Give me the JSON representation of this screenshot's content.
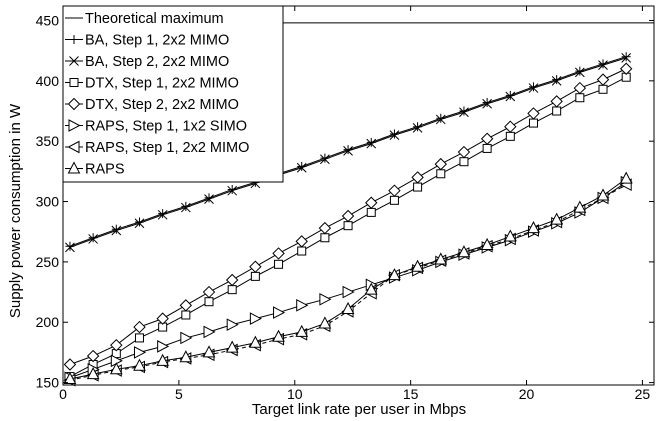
{
  "chart_data": {
    "type": "line",
    "title": "",
    "xlabel": "Target link rate per user in Mbps",
    "ylabel": "Supply power consumption in W",
    "xlim": [
      0,
      25.5
    ],
    "ylim": [
      148,
      462
    ],
    "xticks": [
      0,
      5,
      10,
      15,
      20,
      25
    ],
    "yticks": [
      150,
      200,
      250,
      300,
      350,
      400,
      450
    ],
    "grid": false,
    "legend_position": "top-left",
    "theoretical_maximum": {
      "name": "Theoretical maximum",
      "value": 448
    },
    "x": [
      0.3,
      1.3,
      2.3,
      3.3,
      4.3,
      5.3,
      6.3,
      7.3,
      8.3,
      9.3,
      10.3,
      11.3,
      12.3,
      13.3,
      14.3,
      15.3,
      16.3,
      17.3,
      18.3,
      19.3,
      20.3,
      21.3,
      22.3,
      23.3,
      24.3
    ],
    "series": [
      {
        "name": "BA, Step 1, 2x2 MIMO",
        "marker": "plus",
        "values": [
          263,
          270,
          277,
          283,
          290,
          296,
          303,
          310,
          316,
          323,
          329,
          336,
          343,
          349,
          356,
          362,
          369,
          375,
          382,
          388,
          395,
          401,
          408,
          414,
          420
        ]
      },
      {
        "name": "BA, Step 2, 2x2 MIMO",
        "marker": "x",
        "values": [
          262,
          269,
          276,
          282,
          289,
          295,
          302,
          309,
          315,
          322,
          328,
          335,
          342,
          348,
          355,
          361,
          368,
          374,
          381,
          387,
          394,
          400,
          407,
          413,
          419
        ]
      },
      {
        "name": "DTX, Step 1, 2x2 MIMO",
        "marker": "square",
        "values": [
          155,
          165,
          174,
          187,
          196,
          206,
          217,
          227,
          238,
          248,
          259,
          270,
          280,
          291,
          301,
          312,
          323,
          333,
          344,
          354,
          365,
          375,
          386,
          393,
          403
        ]
      },
      {
        "name": "DTX, Step 2, 2x2 MIMO",
        "marker": "diamond",
        "values": [
          165,
          172,
          181,
          196,
          203,
          214,
          225,
          235,
          246,
          257,
          267,
          278,
          288,
          299,
          309,
          320,
          331,
          341,
          352,
          362,
          373,
          383,
          394,
          401,
          410
        ]
      },
      {
        "name": "RAPS, Step 1, 1x2 SIMO",
        "marker": "triangle-right",
        "values": [
          154,
          161,
          168,
          175,
          180,
          187,
          192,
          198,
          203,
          208,
          214,
          219,
          225,
          231,
          237,
          243,
          250,
          256,
          262,
          268,
          275,
          282,
          291,
          303,
          316
        ]
      },
      {
        "name": "RAPS, Step 1, 2x2 MIMO",
        "marker": "triangle-left",
        "values": [
          152,
          156,
          160,
          163,
          167,
          170,
          173,
          177,
          181,
          186,
          190,
          197,
          209,
          224,
          239,
          245,
          251,
          257,
          263,
          269,
          276,
          283,
          293,
          303,
          314
        ]
      },
      {
        "name": "RAPS",
        "marker": "triangle-up",
        "values": [
          153,
          157,
          161,
          164,
          168,
          171,
          175,
          179,
          183,
          188,
          192,
          199,
          211,
          227,
          239,
          246,
          252,
          258,
          264,
          271,
          278,
          285,
          295,
          305,
          319
        ]
      }
    ]
  }
}
